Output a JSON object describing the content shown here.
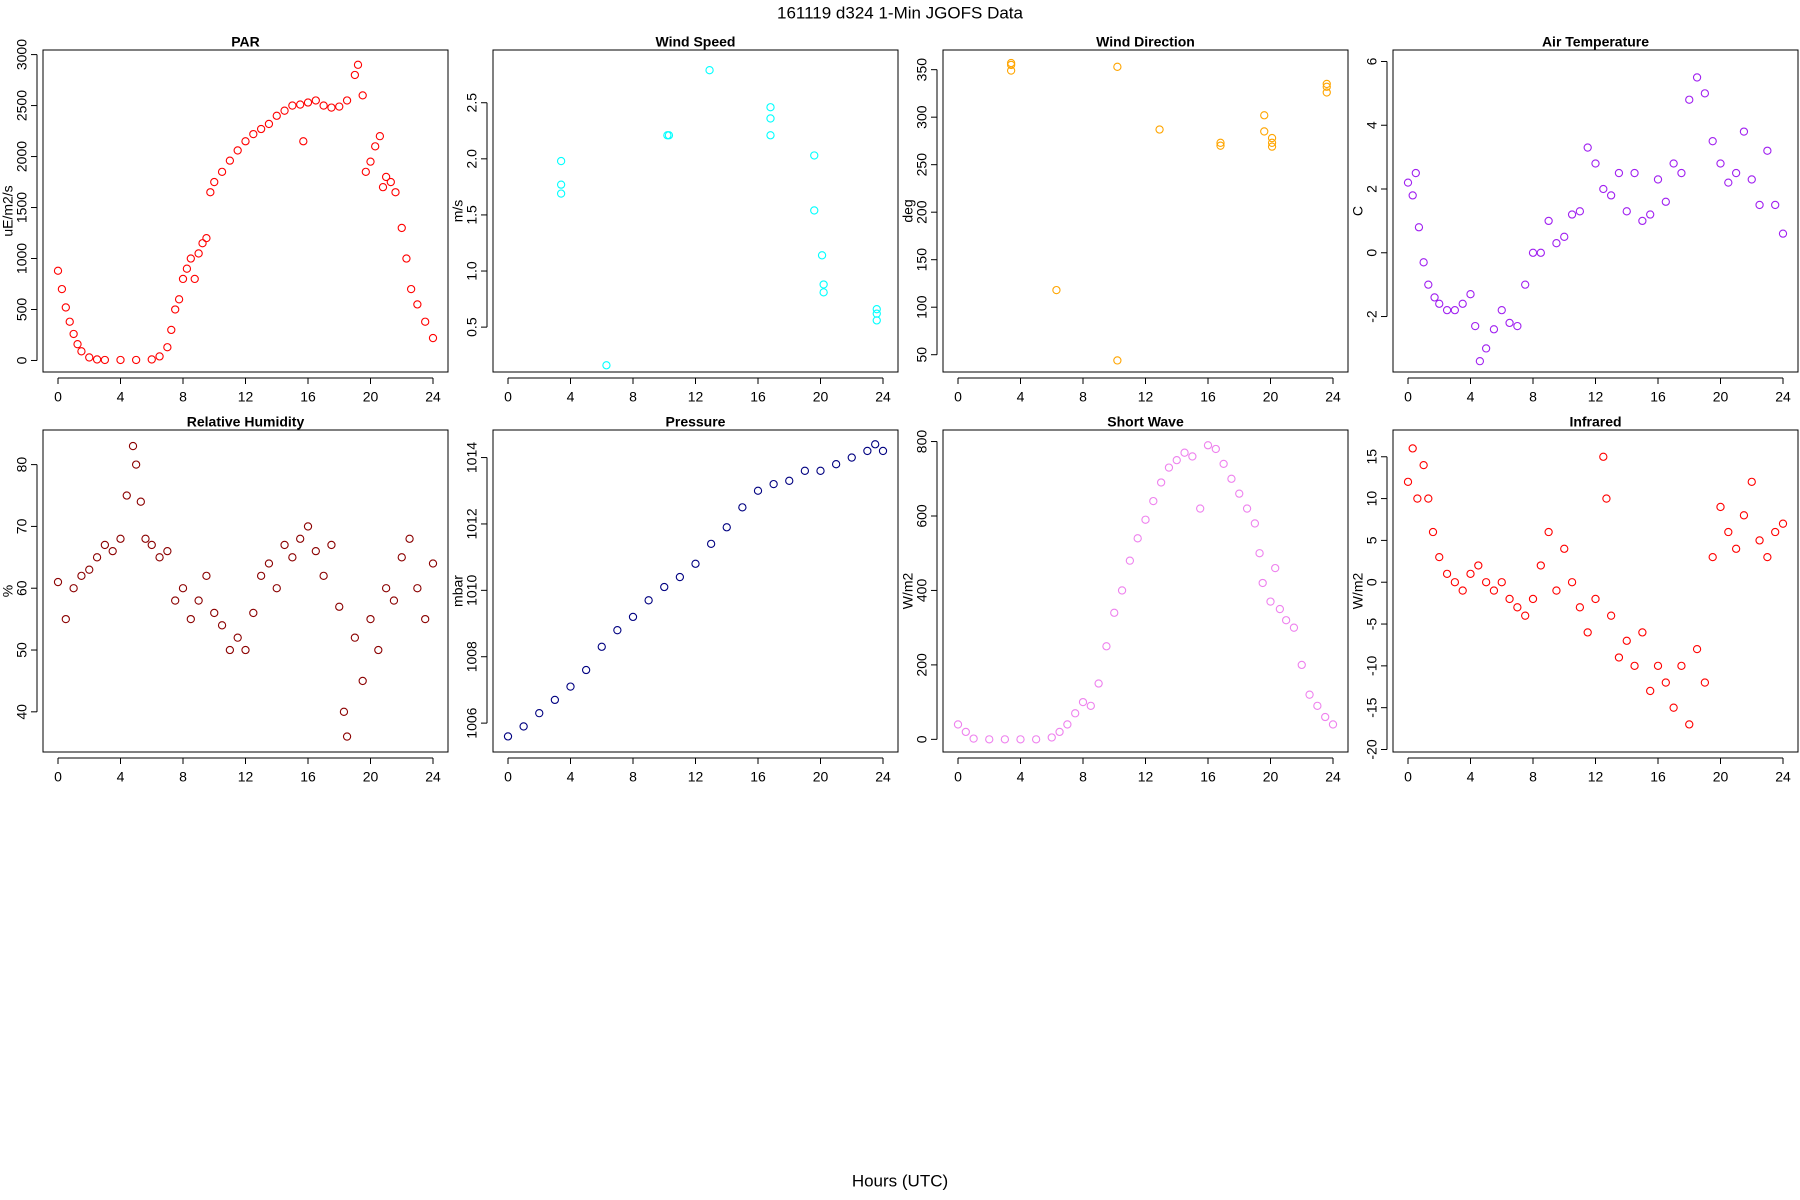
{
  "title": "161119   d324   1-Min  JGOFS Data",
  "xlabel": "Hours (UTC)",
  "chart_data": [
    {
      "type": "scatter",
      "title": "PAR",
      "ylabel": "uE/m2/s",
      "color": "#ff0000",
      "x": [
        0,
        0.25,
        0.5,
        0.75,
        1,
        1.25,
        1.5,
        2,
        2.5,
        3,
        4,
        5,
        6,
        6.5,
        7,
        7.25,
        7.5,
        7.75,
        8,
        8.25,
        8.5,
        8.75,
        9,
        9.25,
        9.5,
        9.75,
        10,
        10.5,
        11,
        11.5,
        12,
        12.5,
        13,
        13.5,
        14,
        14.5,
        15,
        15.5,
        15.7,
        16,
        16.5,
        17,
        17.5,
        18,
        18.5,
        19,
        19.2,
        19.5,
        19.7,
        20,
        20.3,
        20.6,
        20.8,
        21,
        21.3,
        21.6,
        22,
        22.3,
        22.6,
        23,
        23.5,
        24
      ],
      "values": [
        880,
        700,
        520,
        380,
        260,
        160,
        90,
        30,
        10,
        5,
        5,
        5,
        10,
        40,
        130,
        300,
        500,
        600,
        800,
        900,
        1000,
        800,
        1050,
        1150,
        1200,
        1650,
        1750,
        1850,
        1960,
        2060,
        2150,
        2220,
        2270,
        2320,
        2400,
        2450,
        2500,
        2510,
        2150,
        2530,
        2550,
        2500,
        2480,
        2490,
        2550,
        2800,
        2900,
        2600,
        1850,
        1950,
        2100,
        2200,
        1700,
        1800,
        1750,
        1650,
        1300,
        1000,
        700,
        550,
        380,
        220
      ],
      "xlim": [
        -0.96,
        24.96
      ],
      "xticks": [
        0,
        4,
        8,
        12,
        16,
        20,
        24
      ],
      "ylim": [
        -113,
        3045
      ],
      "yticks": [
        0,
        500,
        1000,
        1500,
        2000,
        2500,
        3000
      ]
    },
    {
      "type": "scatter",
      "title": "Wind Speed",
      "ylabel": "m/s",
      "color": "#00ffff",
      "x": [
        3.4,
        3.4,
        3.4,
        6.3,
        10.2,
        10.3,
        12.9,
        16.8,
        16.8,
        16.8,
        19.6,
        19.6,
        20.1,
        20.2,
        20.2,
        23.6,
        23.6,
        23.6
      ],
      "values": [
        1.98,
        1.77,
        1.69,
        0.16,
        2.21,
        2.21,
        2.79,
        2.46,
        2.36,
        2.21,
        2.03,
        1.54,
        1.14,
        0.88,
        0.81,
        0.66,
        0.62,
        0.56
      ],
      "xlim": [
        -0.96,
        24.96
      ],
      "xticks": [
        0,
        4,
        8,
        12,
        16,
        20,
        24
      ],
      "ylim": [
        0.1,
        2.97
      ],
      "yticks": [
        {
          "value": 0.5,
          "label": "0.5"
        },
        {
          "value": 1,
          "label": "1.0"
        },
        {
          "value": 1.5,
          "label": "1.5"
        },
        {
          "value": 2,
          "label": "2.0"
        },
        {
          "value": 2.5,
          "label": "2.5"
        }
      ]
    },
    {
      "type": "scatter",
      "title": "Wind Direction",
      "ylabel": "deg",
      "color": "#ffa500",
      "x": [
        3.4,
        3.4,
        3.4,
        6.3,
        10.2,
        10.2,
        12.9,
        16.8,
        16.8,
        19.6,
        19.6,
        20.1,
        20.1,
        20.1,
        23.6,
        23.6,
        23.6
      ],
      "values": [
        357,
        355,
        349,
        118,
        353,
        44,
        287,
        273,
        270,
        302,
        285,
        278,
        273,
        269,
        335,
        332,
        326
      ],
      "xlim": [
        -0.96,
        24.96
      ],
      "xticks": [
        0,
        4,
        8,
        12,
        16,
        20,
        24
      ],
      "ylim": [
        31.8,
        370.7
      ],
      "yticks": [
        50,
        100,
        150,
        200,
        250,
        300,
        350
      ]
    },
    {
      "type": "scatter",
      "title": "Air Temperature",
      "ylabel": "C",
      "color": "#a020f0",
      "x": [
        0,
        0.3,
        0.5,
        0.7,
        1,
        1.3,
        1.7,
        2,
        2.5,
        3,
        3.5,
        4,
        4.3,
        4.6,
        5,
        5.5,
        6,
        6.5,
        7,
        7.5,
        8,
        8.5,
        9,
        9.5,
        10,
        10.5,
        11,
        11.5,
        12,
        12.5,
        13,
        13.5,
        14,
        14.5,
        15,
        15.5,
        16,
        16.5,
        17,
        17.5,
        18,
        18.5,
        19,
        19.5,
        20,
        20.5,
        21,
        21.5,
        22,
        22.5,
        23,
        23.5,
        24
      ],
      "values": [
        2.2,
        1.8,
        2.5,
        0.8,
        -0.3,
        -1,
        -1.4,
        -1.6,
        -1.8,
        -1.8,
        -1.6,
        -1.3,
        -2.3,
        -3.4,
        -3,
        -2.4,
        -1.8,
        -2.2,
        -2.3,
        -1,
        0,
        0,
        1,
        0.3,
        0.5,
        1.2,
        1.3,
        3.3,
        2.8,
        2,
        1.8,
        2.5,
        1.3,
        2.5,
        1,
        1.2,
        2.3,
        1.6,
        2.8,
        2.5,
        4.8,
        5.5,
        5,
        3.5,
        2.8,
        2.2,
        2.5,
        3.8,
        2.3,
        1.5,
        3.2,
        1.5,
        0.6
      ],
      "xlim": [
        -0.96,
        24.96
      ],
      "xticks": [
        0,
        4,
        8,
        12,
        16,
        20,
        24
      ],
      "ylim": [
        -3.74,
        6.36
      ],
      "yticks": [
        -2,
        0,
        2,
        4,
        6
      ]
    },
    {
      "type": "scatter",
      "title": "Relative Humidity",
      "ylabel": "%",
      "color": "#8b0000",
      "x": [
        0,
        0.5,
        1,
        1.5,
        2,
        2.5,
        3,
        3.5,
        4,
        4.4,
        4.8,
        5,
        5.3,
        5.6,
        6,
        6.5,
        7,
        7.5,
        8,
        8.5,
        9,
        9.5,
        10,
        10.5,
        11,
        11.5,
        12,
        12.5,
        13,
        13.5,
        14,
        14.5,
        15,
        15.5,
        16,
        16.5,
        17,
        17.5,
        18,
        18.3,
        18.5,
        19,
        19.5,
        20,
        20.5,
        21,
        21.5,
        22,
        22.5,
        23,
        23.5,
        24
      ],
      "values": [
        61,
        55,
        60,
        62,
        63,
        65,
        67,
        66,
        68,
        75,
        83,
        80,
        74,
        68,
        67,
        65,
        66,
        58,
        60,
        55,
        58,
        62,
        56,
        54,
        50,
        52,
        50,
        56,
        62,
        64,
        60,
        67,
        65,
        68,
        70,
        66,
        62,
        67,
        57,
        40,
        36,
        52,
        45,
        55,
        50,
        60,
        58,
        65,
        68,
        60,
        55,
        64
      ],
      "xlim": [
        -0.96,
        24.96
      ],
      "xticks": [
        0,
        4,
        8,
        12,
        16,
        20,
        24
      ],
      "ylim": [
        33.5,
        85.6
      ],
      "yticks": [
        40,
        50,
        60,
        70,
        80
      ]
    },
    {
      "type": "scatter",
      "title": "Pressure",
      "ylabel": "mbar",
      "color": "#000080",
      "x": [
        0,
        1,
        2,
        3,
        4,
        5,
        6,
        7,
        8,
        9,
        10,
        11,
        12,
        13,
        14,
        15,
        16,
        17,
        18,
        19,
        20,
        21,
        22,
        23,
        23.5,
        24
      ],
      "values": [
        1005.6,
        1005.9,
        1006.3,
        1006.7,
        1007.1,
        1007.6,
        1008.3,
        1008.8,
        1009.2,
        1009.7,
        1010.1,
        1010.4,
        1010.8,
        1011.4,
        1011.9,
        1012.5,
        1013,
        1013.2,
        1013.3,
        1013.6,
        1013.6,
        1013.8,
        1014,
        1014.2,
        1014.4,
        1014.2
      ],
      "xlim": [
        -0.96,
        24.96
      ],
      "xticks": [
        0,
        4,
        8,
        12,
        16,
        20,
        24
      ],
      "ylim": [
        1005.13,
        1014.83
      ],
      "yticks": [
        1006,
        1008,
        1010,
        1012,
        1014
      ]
    },
    {
      "type": "scatter",
      "title": "Short Wave",
      "ylabel": "W/m2",
      "color": "#ee82ee",
      "x": [
        0,
        0.5,
        1,
        2,
        3,
        4,
        5,
        6,
        6.5,
        7,
        7.5,
        8,
        8.5,
        9,
        9.5,
        10,
        10.5,
        11,
        11.5,
        12,
        12.5,
        13,
        13.5,
        14,
        14.5,
        15,
        15.5,
        16,
        16.5,
        17,
        17.5,
        18,
        18.5,
        19,
        19.3,
        19.5,
        20,
        20.3,
        20.6,
        21,
        21.5,
        22,
        22.5,
        23,
        23.5,
        24
      ],
      "values": [
        40,
        20,
        2,
        0,
        0,
        0,
        0,
        5,
        20,
        40,
        70,
        100,
        90,
        150,
        250,
        340,
        400,
        480,
        540,
        590,
        640,
        690,
        730,
        750,
        770,
        760,
        620,
        790,
        780,
        740,
        700,
        660,
        620,
        580,
        500,
        420,
        370,
        460,
        350,
        320,
        300,
        200,
        120,
        90,
        60,
        40
      ],
      "xlim": [
        -0.96,
        24.96
      ],
      "xticks": [
        0,
        4,
        8,
        12,
        16,
        20,
        24
      ],
      "ylim": [
        -34,
        831
      ],
      "yticks": [
        0,
        200,
        400,
        600,
        800
      ]
    },
    {
      "type": "scatter",
      "title": "Infrared",
      "ylabel": "W/m2",
      "color": "#ff0000",
      "x": [
        0,
        0.3,
        0.6,
        1,
        1.3,
        1.6,
        2,
        2.5,
        3,
        3.5,
        4,
        4.5,
        5,
        5.5,
        6,
        6.5,
        7,
        7.5,
        8,
        8.5,
        9,
        9.5,
        10,
        10.5,
        11,
        11.5,
        12,
        12.5,
        12.7,
        13,
        13.5,
        14,
        14.5,
        15,
        15.5,
        16,
        16.5,
        17,
        17.5,
        18,
        18.5,
        19,
        19.5,
        20,
        20.5,
        21,
        21.5,
        22,
        22.5,
        23,
        23.5,
        24
      ],
      "values": [
        12,
        16,
        10,
        14,
        10,
        6,
        3,
        1,
        0,
        -1,
        1,
        2,
        0,
        -1,
        0,
        -2,
        -3,
        -4,
        -2,
        2,
        6,
        -1,
        4,
        0,
        -3,
        -6,
        -2,
        15,
        10,
        -4,
        -9,
        -7,
        -10,
        -6,
        -13,
        -10,
        -12,
        -15,
        -10,
        -17,
        -8,
        -12,
        3,
        9,
        6,
        4,
        8,
        12,
        5,
        3,
        6,
        7
      ],
      "xlim": [
        -0.96,
        24.96
      ],
      "xticks": [
        0,
        4,
        8,
        12,
        16,
        20,
        24
      ],
      "ylim": [
        -20.3,
        18.2
      ],
      "yticks": [
        -20,
        -15,
        -10,
        -5,
        0,
        5,
        10,
        15
      ]
    }
  ]
}
